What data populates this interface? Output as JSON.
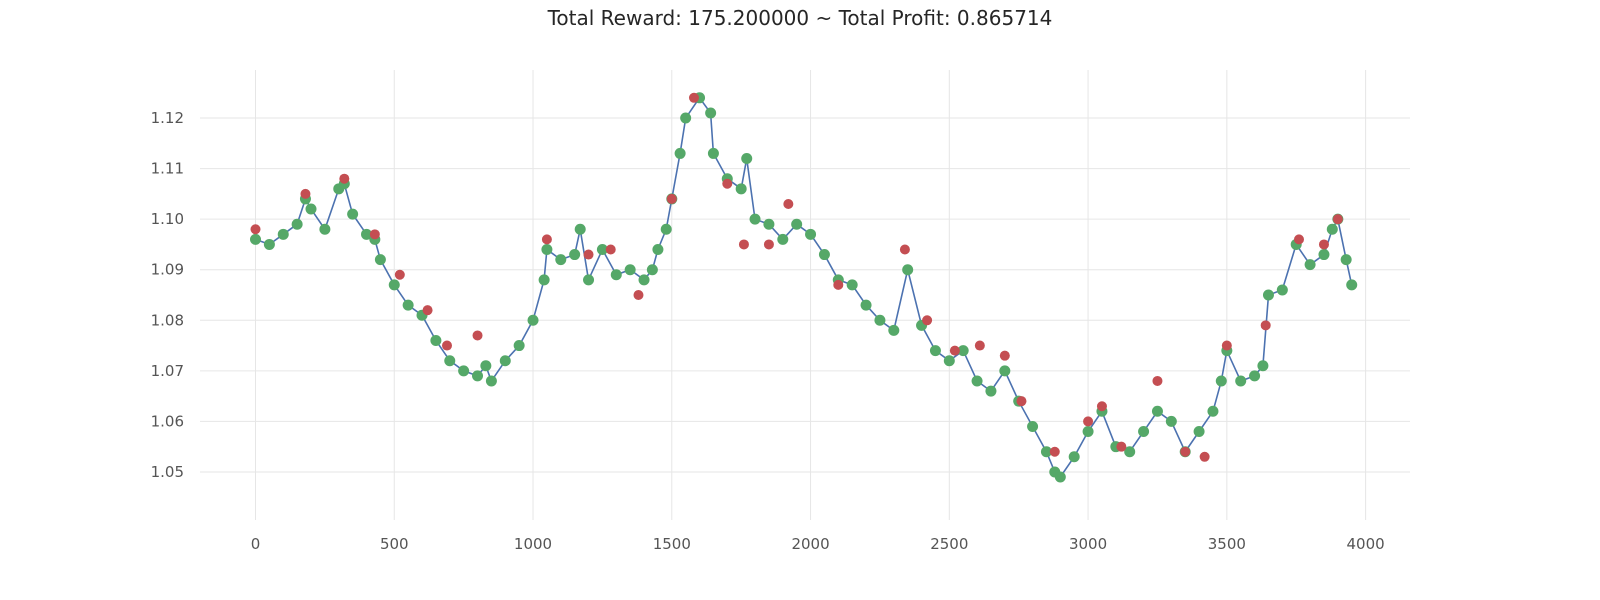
{
  "chart_data": {
    "type": "line",
    "title": "Total Reward: 175.200000 ~ Total Profit: 0.865714",
    "xlabel": "",
    "ylabel": "",
    "xlim": [
      -200,
      4160
    ],
    "ylim": [
      1.0405,
      1.1295
    ],
    "grid": true,
    "legend": "none",
    "x_ticks": [
      0,
      500,
      1000,
      1500,
      2000,
      2500,
      3000,
      3500,
      4000
    ],
    "x_tick_labels": [
      "0",
      "500",
      "1000",
      "1500",
      "2000",
      "2500",
      "3000",
      "3500",
      "4000"
    ],
    "y_ticks": [
      1.05,
      1.06,
      1.07,
      1.08,
      1.09,
      1.1,
      1.11,
      1.12
    ],
    "y_tick_labels": [
      "1.05",
      "1.06",
      "1.07",
      "1.08",
      "1.09",
      "1.10",
      "1.11",
      "1.12"
    ],
    "colors": {
      "price_line": "#4c72b0",
      "short_position": "#c44e52",
      "long_position": "#55a868"
    },
    "x": [
      0,
      50,
      100,
      150,
      180,
      200,
      250,
      300,
      320,
      350,
      400,
      430,
      450,
      500,
      550,
      600,
      650,
      700,
      750,
      800,
      830,
      850,
      900,
      950,
      1000,
      1040,
      1050,
      1100,
      1150,
      1170,
      1200,
      1250,
      1300,
      1350,
      1400,
      1430,
      1450,
      1480,
      1500,
      1530,
      1550,
      1600,
      1640,
      1650,
      1700,
      1750,
      1770,
      1800,
      1850,
      1900,
      1950,
      2000,
      2050,
      2100,
      2150,
      2200,
      2250,
      2300,
      2350,
      2400,
      2450,
      2500,
      2550,
      2600,
      2650,
      2700,
      2750,
      2800,
      2850,
      2880,
      2900,
      2950,
      3000,
      3050,
      3100,
      3150,
      3200,
      3250,
      3300,
      3350,
      3400,
      3450,
      3480,
      3500,
      3550,
      3600,
      3630,
      3650,
      3700,
      3750,
      3800,
      3850,
      3880,
      3900,
      3930,
      3950
    ],
    "y": [
      1.096,
      1.095,
      1.097,
      1.099,
      1.104,
      1.102,
      1.098,
      1.106,
      1.107,
      1.101,
      1.097,
      1.096,
      1.092,
      1.087,
      1.083,
      1.081,
      1.076,
      1.072,
      1.07,
      1.069,
      1.071,
      1.068,
      1.072,
      1.075,
      1.08,
      1.088,
      1.094,
      1.092,
      1.093,
      1.098,
      1.088,
      1.094,
      1.089,
      1.09,
      1.088,
      1.09,
      1.094,
      1.098,
      1.104,
      1.113,
      1.12,
      1.124,
      1.121,
      1.113,
      1.108,
      1.106,
      1.112,
      1.1,
      1.099,
      1.096,
      1.099,
      1.097,
      1.093,
      1.088,
      1.087,
      1.083,
      1.08,
      1.078,
      1.09,
      1.079,
      1.074,
      1.072,
      1.074,
      1.068,
      1.066,
      1.07,
      1.064,
      1.059,
      1.054,
      1.05,
      1.049,
      1.053,
      1.058,
      1.062,
      1.055,
      1.054,
      1.058,
      1.062,
      1.06,
      1.054,
      1.058,
      1.062,
      1.068,
      1.074,
      1.068,
      1.069,
      1.071,
      1.085,
      1.086,
      1.095,
      1.091,
      1.093,
      1.098,
      1.1,
      1.092,
      1.087
    ],
    "short_positions_x": [
      0,
      180,
      320,
      430,
      520,
      620,
      690,
      800,
      1050,
      1200,
      1280,
      1380,
      1500,
      1580,
      1700,
      1760,
      1850,
      1920,
      2100,
      2340,
      2420,
      2520,
      2610,
      2700,
      2760,
      2880,
      3000,
      3050,
      3120,
      3250,
      3350,
      3420,
      3500,
      3640,
      3760,
      3850,
      3900
    ],
    "short_positions_y": [
      1.098,
      1.105,
      1.108,
      1.097,
      1.089,
      1.082,
      1.075,
      1.077,
      1.096,
      1.093,
      1.094,
      1.085,
      1.104,
      1.124,
      1.107,
      1.095,
      1.095,
      1.103,
      1.087,
      1.094,
      1.08,
      1.074,
      1.075,
      1.073,
      1.064,
      1.054,
      1.06,
      1.063,
      1.055,
      1.068,
      1.054,
      1.053,
      1.075,
      1.079,
      1.096,
      1.095,
      1.1
    ]
  }
}
